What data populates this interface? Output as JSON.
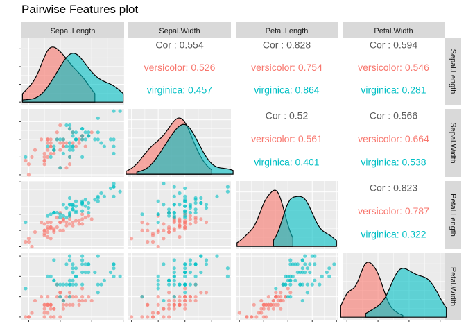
{
  "title": "Pairwise Features plot",
  "colors": {
    "versicolor": "#F8766D",
    "virginica": "#00BFC4",
    "panel": "#EBEBEB",
    "strip": "#D9D9D9"
  },
  "chart_data": {
    "type": "scatter-matrix",
    "title": "Pairwise Features plot",
    "variables": [
      "Sepal.Length",
      "Sepal.Width",
      "Petal.Length",
      "Petal.Width"
    ],
    "series_names": [
      "versicolor",
      "virginica"
    ],
    "axis_ranges": {
      "Sepal.Length": [
        4.77,
        8.03
      ],
      "Sepal.Width": [
        1.94,
        3.86
      ],
      "Petal.Length": [
        2.85,
        7.05
      ],
      "Petal.Width": [
        0.93,
        2.57
      ]
    },
    "ticks": {
      "Sepal.Length": [
        5,
        6,
        7,
        8
      ],
      "Sepal.Width": [
        2.0,
        2.5,
        3.0,
        3.5
      ],
      "Petal.Length": [
        3,
        4,
        5,
        6,
        7
      ],
      "Petal.Width": [
        1.0,
        1.5,
        2.0,
        2.5
      ]
    },
    "tick_labels": {
      "x": {
        "Sepal.Length": [
          "5",
          "6",
          "7",
          "8"
        ],
        "Sepal.Width": [
          "2.0",
          "2.5",
          "3.0",
          "3.5"
        ],
        "Petal.Length": [
          "3",
          "4",
          "5",
          "6",
          "7"
        ],
        "Petal.Width": [
          "1.0",
          "1.5",
          "2.0",
          "2.5"
        ]
      },
      "y": {
        "Sepal.Length": [
          "0.0",
          "0.2",
          "0.4",
          "0.6"
        ],
        "Sepal.Width": [
          "2.0",
          "2.5",
          "3.0",
          "3.5"
        ],
        "Petal.Length": [
          "3",
          "4",
          "5",
          "6",
          "7"
        ],
        "Petal.Width": [
          "1.0",
          "1.5",
          "2.0",
          "2.5"
        ]
      }
    },
    "density_yaxis": {
      "range": [
        -0.03,
        0.72
      ],
      "ticks": [
        0.0,
        0.2,
        0.4,
        0.6
      ]
    },
    "correlations": [
      {
        "row": 0,
        "col": 1,
        "overall": "Cor : 0.554",
        "versicolor": "versicolor: 0.526",
        "virginica": "virginica: 0.457"
      },
      {
        "row": 0,
        "col": 2,
        "overall": "Cor : 0.828",
        "versicolor": "versicolor: 0.754",
        "virginica": "virginica: 0.864"
      },
      {
        "row": 0,
        "col": 3,
        "overall": "Cor : 0.594",
        "versicolor": "versicolor: 0.546",
        "virginica": "virginica: 0.281"
      },
      {
        "row": 1,
        "col": 2,
        "overall": "Cor : 0.52",
        "versicolor": "versicolor: 0.561",
        "virginica": "virginica: 0.401"
      },
      {
        "row": 1,
        "col": 3,
        "overall": "Cor : 0.566",
        "versicolor": "versicolor: 0.664",
        "virginica": "virginica: 0.538"
      },
      {
        "row": 2,
        "col": 3,
        "overall": "Cor : 0.823",
        "versicolor": "versicolor: 0.787",
        "virginica": "virginica: 0.322"
      }
    ],
    "data": {
      "versicolor": [
        [
          7.0,
          3.2,
          4.7,
          1.4
        ],
        [
          6.4,
          3.2,
          4.5,
          1.5
        ],
        [
          6.9,
          3.1,
          4.9,
          1.5
        ],
        [
          5.5,
          2.3,
          4.0,
          1.3
        ],
        [
          6.5,
          2.8,
          4.6,
          1.5
        ],
        [
          5.7,
          2.8,
          4.5,
          1.3
        ],
        [
          6.3,
          3.3,
          4.7,
          1.6
        ],
        [
          4.9,
          2.4,
          3.3,
          1.0
        ],
        [
          6.6,
          2.9,
          4.6,
          1.3
        ],
        [
          5.2,
          2.7,
          3.9,
          1.4
        ],
        [
          5.0,
          2.0,
          3.5,
          1.0
        ],
        [
          5.9,
          3.0,
          4.2,
          1.5
        ],
        [
          6.0,
          2.2,
          4.0,
          1.0
        ],
        [
          6.1,
          2.9,
          4.7,
          1.4
        ],
        [
          5.6,
          2.9,
          3.6,
          1.3
        ],
        [
          6.7,
          3.1,
          4.4,
          1.4
        ],
        [
          5.6,
          3.0,
          4.5,
          1.5
        ],
        [
          5.8,
          2.7,
          4.1,
          1.0
        ],
        [
          6.2,
          2.2,
          4.5,
          1.5
        ],
        [
          5.6,
          2.5,
          3.9,
          1.1
        ],
        [
          5.9,
          3.2,
          4.8,
          1.8
        ],
        [
          6.1,
          2.8,
          4.0,
          1.3
        ],
        [
          6.3,
          2.5,
          4.9,
          1.5
        ],
        [
          6.1,
          2.8,
          4.7,
          1.2
        ],
        [
          6.4,
          2.9,
          4.3,
          1.3
        ],
        [
          6.6,
          3.0,
          4.4,
          1.4
        ],
        [
          6.8,
          2.8,
          4.8,
          1.4
        ],
        [
          6.7,
          3.0,
          5.0,
          1.7
        ],
        [
          6.0,
          2.9,
          4.5,
          1.5
        ],
        [
          5.7,
          2.6,
          3.5,
          1.0
        ],
        [
          5.5,
          2.4,
          3.8,
          1.1
        ],
        [
          5.5,
          2.4,
          3.7,
          1.0
        ],
        [
          5.8,
          2.7,
          3.9,
          1.2
        ],
        [
          6.0,
          2.7,
          5.1,
          1.6
        ],
        [
          5.4,
          3.0,
          4.5,
          1.5
        ],
        [
          6.0,
          3.4,
          4.5,
          1.6
        ],
        [
          6.7,
          3.1,
          4.7,
          1.5
        ],
        [
          6.3,
          2.3,
          4.4,
          1.3
        ],
        [
          5.6,
          3.0,
          4.1,
          1.3
        ],
        [
          5.5,
          2.5,
          4.0,
          1.3
        ],
        [
          5.5,
          2.6,
          4.4,
          1.2
        ],
        [
          6.1,
          3.0,
          4.6,
          1.4
        ],
        [
          5.8,
          2.6,
          4.0,
          1.2
        ],
        [
          5.0,
          2.3,
          3.3,
          1.0
        ],
        [
          5.6,
          2.7,
          4.2,
          1.3
        ],
        [
          5.7,
          3.0,
          4.2,
          1.2
        ],
        [
          5.7,
          2.9,
          4.2,
          1.3
        ],
        [
          6.2,
          2.9,
          4.3,
          1.3
        ],
        [
          5.1,
          2.5,
          3.0,
          1.1
        ],
        [
          5.7,
          2.8,
          4.1,
          1.3
        ]
      ],
      "virginica": [
        [
          6.3,
          3.3,
          6.0,
          2.5
        ],
        [
          5.8,
          2.7,
          5.1,
          1.9
        ],
        [
          7.1,
          3.0,
          5.9,
          2.1
        ],
        [
          6.3,
          2.9,
          5.6,
          1.8
        ],
        [
          6.5,
          3.0,
          5.8,
          2.2
        ],
        [
          7.6,
          3.0,
          6.6,
          2.1
        ],
        [
          4.9,
          2.5,
          4.5,
          1.7
        ],
        [
          7.3,
          2.9,
          6.3,
          1.8
        ],
        [
          6.7,
          2.5,
          5.8,
          1.8
        ],
        [
          7.2,
          3.6,
          6.1,
          2.5
        ],
        [
          6.5,
          3.2,
          5.1,
          2.0
        ],
        [
          6.4,
          2.7,
          5.3,
          1.9
        ],
        [
          6.8,
          3.0,
          5.5,
          2.1
        ],
        [
          5.7,
          2.5,
          5.0,
          2.0
        ],
        [
          5.8,
          2.8,
          5.1,
          2.4
        ],
        [
          6.4,
          3.2,
          5.3,
          2.3
        ],
        [
          6.5,
          3.0,
          5.5,
          1.8
        ],
        [
          7.7,
          3.8,
          6.7,
          2.2
        ],
        [
          7.7,
          2.6,
          6.9,
          2.3
        ],
        [
          6.0,
          2.2,
          5.0,
          1.5
        ],
        [
          6.9,
          3.2,
          5.7,
          2.3
        ],
        [
          5.6,
          2.8,
          4.9,
          2.0
        ],
        [
          7.7,
          2.8,
          6.7,
          2.0
        ],
        [
          6.3,
          2.7,
          4.9,
          1.8
        ],
        [
          6.7,
          3.3,
          5.7,
          2.1
        ],
        [
          7.2,
          3.2,
          6.0,
          1.8
        ],
        [
          6.2,
          2.8,
          4.8,
          1.8
        ],
        [
          6.1,
          3.0,
          4.9,
          1.8
        ],
        [
          6.4,
          2.8,
          5.6,
          2.1
        ],
        [
          7.2,
          3.0,
          5.8,
          1.6
        ],
        [
          7.4,
          2.8,
          6.1,
          1.9
        ],
        [
          7.9,
          3.8,
          6.4,
          2.0
        ],
        [
          6.4,
          2.8,
          5.6,
          2.2
        ],
        [
          6.3,
          2.8,
          5.1,
          1.5
        ],
        [
          6.1,
          2.6,
          5.6,
          1.4
        ],
        [
          7.7,
          3.0,
          6.1,
          2.3
        ],
        [
          6.3,
          3.4,
          5.6,
          2.4
        ],
        [
          6.4,
          3.1,
          5.5,
          1.8
        ],
        [
          6.0,
          3.0,
          4.8,
          1.8
        ],
        [
          6.9,
          3.1,
          5.4,
          2.1
        ],
        [
          6.7,
          3.1,
          5.6,
          2.4
        ],
        [
          6.9,
          3.1,
          5.1,
          2.3
        ],
        [
          5.8,
          2.7,
          5.1,
          1.9
        ],
        [
          6.8,
          3.2,
          5.9,
          2.3
        ],
        [
          6.7,
          3.3,
          5.7,
          2.5
        ],
        [
          6.7,
          3.0,
          5.2,
          2.3
        ],
        [
          6.3,
          2.5,
          5.0,
          1.9
        ],
        [
          6.5,
          3.0,
          5.2,
          2.0
        ],
        [
          6.2,
          3.4,
          5.4,
          2.3
        ],
        [
          5.9,
          3.0,
          5.1,
          1.8
        ]
      ]
    }
  }
}
